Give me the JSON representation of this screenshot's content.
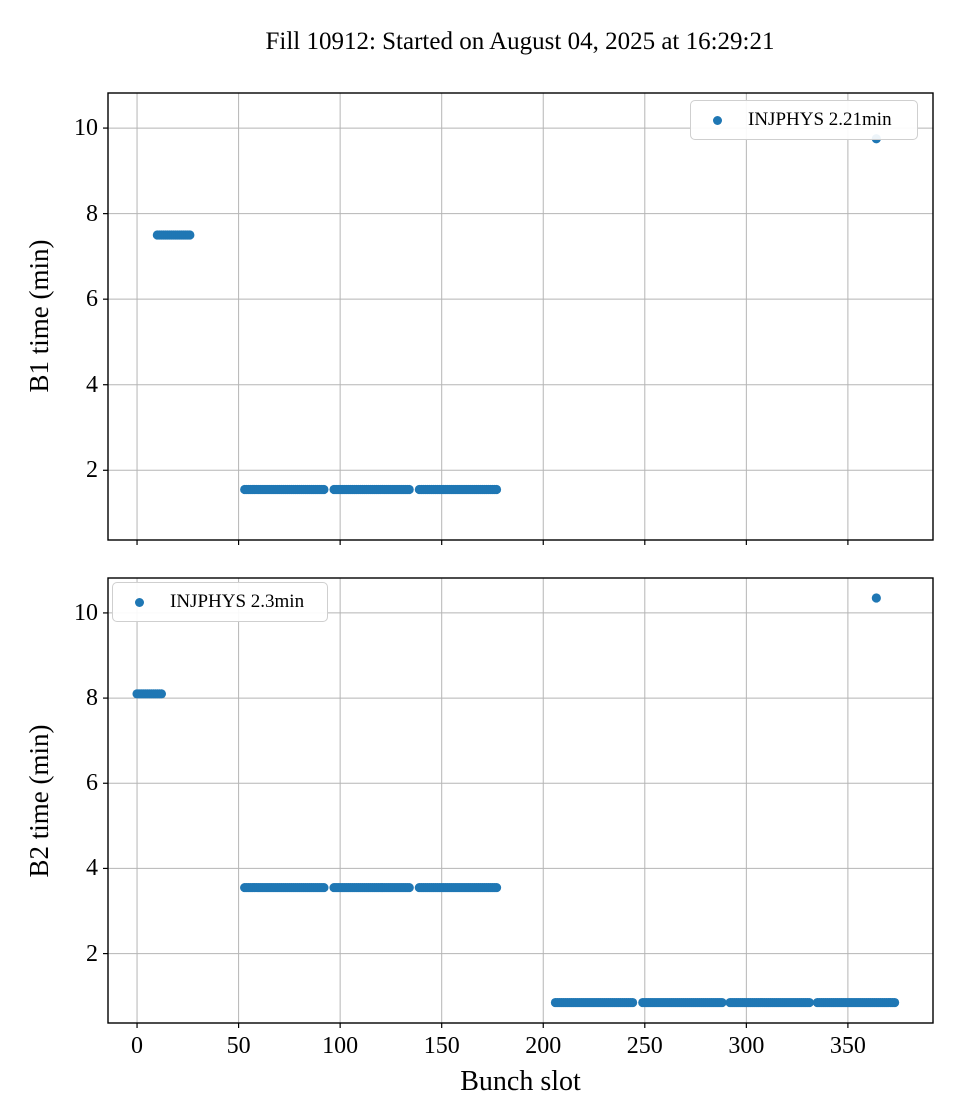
{
  "figure": {
    "title": "Fill 10912: Started on August 04, 2025 at 16:29:21",
    "xlabel": "Bunch slot",
    "marker_color": "#1f77b4",
    "grid_color": "#b5b5b5",
    "spine_color": "#000000"
  },
  "chart_data": [
    {
      "type": "scatter",
      "ylabel": "B1 time (min)",
      "legend": {
        "label": "INJPHYS 2.21min",
        "position": "upper-right"
      },
      "xlim": [
        -14.3,
        391.9
      ],
      "ylim": [
        0.37,
        10.82
      ],
      "xticks": [
        0,
        50,
        100,
        150,
        200,
        250,
        300,
        350
      ],
      "yticks": [
        2,
        4,
        6,
        8,
        10
      ],
      "grid": true,
      "x_tick_labels_visible": false,
      "series_runs": [
        {
          "slot_start": 10,
          "slot_end": 26,
          "value": 7.5
        },
        {
          "slot_start": 53,
          "slot_end": 92,
          "value": 1.55
        },
        {
          "slot_start": 97,
          "slot_end": 134,
          "value": 1.55
        },
        {
          "slot_start": 139,
          "slot_end": 177,
          "value": 1.55
        }
      ],
      "outliers": [
        {
          "slot": 364,
          "value": 9.75
        }
      ]
    },
    {
      "type": "scatter",
      "ylabel": "B2 time (min)",
      "xlabel": "Bunch slot",
      "legend": {
        "label": "INJPHYS 2.3min",
        "position": "upper-left"
      },
      "xlim": [
        -14.3,
        391.9
      ],
      "ylim": [
        0.37,
        10.82
      ],
      "xticks": [
        0,
        50,
        100,
        150,
        200,
        250,
        300,
        350
      ],
      "yticks": [
        2,
        4,
        6,
        8,
        10
      ],
      "grid": true,
      "x_tick_labels_visible": true,
      "series_runs": [
        {
          "slot_start": 0,
          "slot_end": 12,
          "value": 8.1
        },
        {
          "slot_start": 53,
          "slot_end": 92,
          "value": 3.55
        },
        {
          "slot_start": 97,
          "slot_end": 134,
          "value": 3.55
        },
        {
          "slot_start": 139,
          "slot_end": 177,
          "value": 3.55
        },
        {
          "slot_start": 206,
          "slot_end": 244,
          "value": 0.85
        },
        {
          "slot_start": 249,
          "slot_end": 288,
          "value": 0.85
        },
        {
          "slot_start": 292,
          "slot_end": 331,
          "value": 0.85
        },
        {
          "slot_start": 335,
          "slot_end": 373,
          "value": 0.85
        }
      ],
      "outliers": [
        {
          "slot": 364,
          "value": 10.35
        }
      ]
    }
  ]
}
